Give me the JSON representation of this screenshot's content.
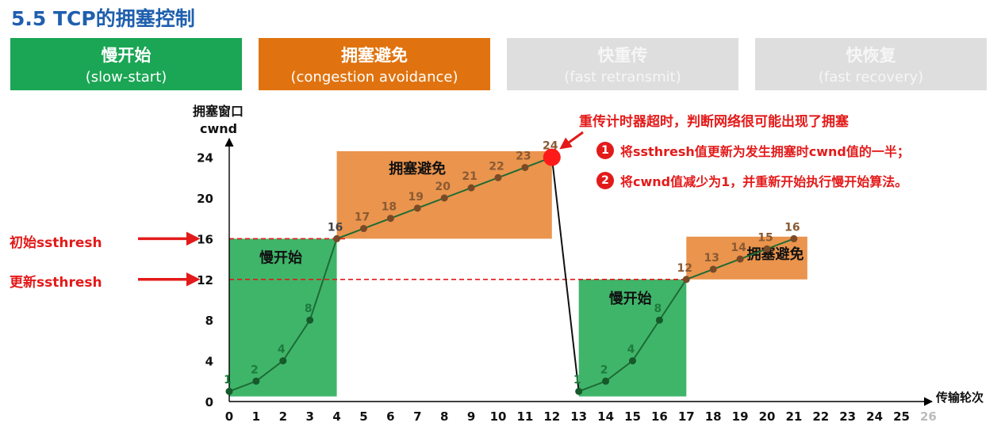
{
  "title": "5.5 TCP的拥塞控制",
  "phases": [
    {
      "zh": "慢开始",
      "en": "(slow-start)",
      "active": true,
      "color": "#1aa654"
    },
    {
      "zh": "拥塞避免",
      "en": "(congestion avoidance)",
      "active": true,
      "color": "#e0730f"
    },
    {
      "zh": "快重传",
      "en": "(fast retransmit)",
      "active": false
    },
    {
      "zh": "快恢复",
      "en": "(fast recovery)",
      "active": false
    }
  ],
  "y_axis": {
    "label_line1": "拥塞窗口",
    "label_line2": "cwnd",
    "ticks": [
      0,
      4,
      8,
      12,
      16,
      20,
      24
    ]
  },
  "x_axis": {
    "label": "传输轮次",
    "ticks": [
      0,
      1,
      2,
      3,
      4,
      5,
      6,
      7,
      8,
      9,
      10,
      11,
      12,
      13,
      14,
      15,
      16,
      17,
      18,
      19,
      20,
      21,
      22,
      23,
      24,
      25,
      26
    ]
  },
  "chart_data": {
    "type": "line",
    "xlabel": "传输轮次",
    "ylabel": "拥塞窗口 cwnd",
    "xlim": [
      0,
      26
    ],
    "ylim": [
      0,
      24
    ],
    "segments": [
      {
        "x": [
          0,
          1,
          2,
          3,
          4,
          5,
          6,
          7,
          8,
          9,
          10,
          11,
          12
        ],
        "y": [
          1,
          2,
          4,
          8,
          16,
          17,
          18,
          19,
          20,
          21,
          22,
          23,
          24
        ]
      },
      {
        "x": [
          13,
          14,
          15,
          16,
          17,
          18,
          19,
          20,
          21
        ],
        "y": [
          1,
          2,
          4,
          8,
          12,
          13,
          14,
          15,
          16
        ]
      }
    ],
    "point_labels": [
      {
        "x": 0,
        "y": 1,
        "label": "1",
        "region": "green"
      },
      {
        "x": 1,
        "y": 2,
        "label": "2",
        "region": "green"
      },
      {
        "x": 2,
        "y": 4,
        "label": "4",
        "region": "green"
      },
      {
        "x": 3,
        "y": 8,
        "label": "8",
        "region": "green"
      },
      {
        "x": 4,
        "y": 16,
        "label": "16",
        "region": "dark"
      },
      {
        "x": 5,
        "y": 17,
        "label": "17",
        "region": "orange"
      },
      {
        "x": 6,
        "y": 18,
        "label": "18",
        "region": "orange"
      },
      {
        "x": 7,
        "y": 19,
        "label": "19",
        "region": "orange"
      },
      {
        "x": 8,
        "y": 20,
        "label": "20",
        "region": "orange"
      },
      {
        "x": 9,
        "y": 21,
        "label": "21",
        "region": "orange"
      },
      {
        "x": 10,
        "y": 22,
        "label": "22",
        "region": "orange"
      },
      {
        "x": 11,
        "y": 23,
        "label": "23",
        "region": "orange"
      },
      {
        "x": 12,
        "y": 24,
        "label": "24",
        "region": "orange"
      },
      {
        "x": 13,
        "y": 1,
        "label": "1",
        "region": "green"
      },
      {
        "x": 14,
        "y": 2,
        "label": "2",
        "region": "green"
      },
      {
        "x": 15,
        "y": 4,
        "label": "4",
        "region": "green"
      },
      {
        "x": 16,
        "y": 8,
        "label": "8",
        "region": "green"
      },
      {
        "x": 17,
        "y": 12,
        "label": "12",
        "region": "orange"
      },
      {
        "x": 18,
        "y": 13,
        "label": "13",
        "region": "orange"
      },
      {
        "x": 19,
        "y": 14,
        "label": "14",
        "region": "orange"
      },
      {
        "x": 20,
        "y": 15,
        "label": "15",
        "region": "orange"
      },
      {
        "x": 21,
        "y": 16,
        "label": "16",
        "region": "orange"
      }
    ],
    "regions": [
      {
        "type": "slow-start",
        "label": "慢开始",
        "x": [
          0,
          4
        ],
        "y": [
          0.5,
          16
        ],
        "color": "#2aad5a"
      },
      {
        "type": "congestion-avoidance",
        "label": "拥塞避免",
        "x": [
          4,
          12
        ],
        "y": [
          16,
          24.6
        ],
        "color": "#e8883a"
      },
      {
        "type": "slow-start",
        "label": "慢开始",
        "x": [
          13,
          17
        ],
        "y": [
          0.5,
          12
        ],
        "color": "#2aad5a"
      },
      {
        "type": "congestion-avoidance",
        "label": "拥塞避免",
        "x": [
          17,
          21.5
        ],
        "y": [
          12,
          16.2
        ],
        "color": "#e8883a"
      }
    ],
    "thresholds": [
      {
        "y": 16,
        "label": "初始ssthresh"
      },
      {
        "y": 12,
        "label": "更新ssthresh"
      }
    ],
    "timeout_point": {
      "x": 12,
      "y": 24
    }
  },
  "annotations": {
    "timeout": "重传计时器超时，判断网络很可能出现了拥塞",
    "steps": [
      {
        "num": "1",
        "text": "将ssthresh值更新为发生拥塞时cwnd值的一半；"
      },
      {
        "num": "2",
        "text": "将cwnd值减少为1，并重新开始执行慢开始算法。"
      }
    ]
  },
  "colors": {
    "accent_red": "#e31a1a",
    "line": "#1e6b34",
    "title": "#1f5fae"
  }
}
